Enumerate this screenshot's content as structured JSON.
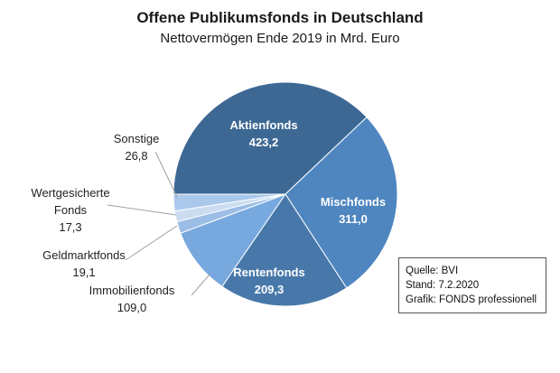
{
  "title": "Offene Publikumsfonds  in Deutschland",
  "subtitle": "Nettovermögen Ende 2019 in Mrd. Euro",
  "source": {
    "line1": "Quelle: BVI",
    "line2": "Stand: 7.2.2020",
    "line3": "Grafik: FONDS professionell"
  },
  "chart_data": {
    "type": "pie",
    "title": "Offene Publikumsfonds  in Deutschland",
    "subtitle": "Nettovermögen Ende 2019 in Mrd. Euro",
    "unit": "Mrd. Euro",
    "slices": [
      {
        "name": "Aktienfonds",
        "value": 423.2,
        "label": "423,2",
        "color": "#3d6894",
        "label_color": "#ffffff"
      },
      {
        "name": "Mischfonds",
        "value": 311.0,
        "label": "311,0",
        "color": "#4f86c0",
        "label_color": "#ffffff"
      },
      {
        "name": "Rentenfonds",
        "value": 209.3,
        "label": "209,3",
        "color": "#4878aa",
        "label_color": "#ffffff"
      },
      {
        "name": "Immobilienfonds",
        "value": 109.0,
        "label": "109,0",
        "color": "#77a8de",
        "label_color": "#222222"
      },
      {
        "name": "Geldmarktfonds",
        "value": 19.1,
        "label": "19,1",
        "color": "#9bbde6",
        "label_color": "#222222"
      },
      {
        "name": "Wertgesicherte Fonds",
        "value": 17.3,
        "label": "17,3",
        "color": "#cbdcf1",
        "label_color": "#222222"
      },
      {
        "name": "Sonstige",
        "value": 26.8,
        "label": "26,8",
        "color": "#aac8ec",
        "label_color": "#222222"
      }
    ]
  }
}
